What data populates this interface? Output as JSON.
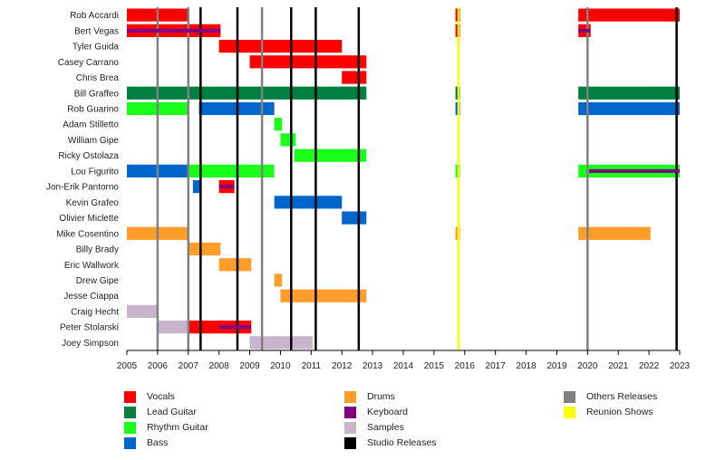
{
  "chart_data": {
    "type": "timeline",
    "xlim": [
      2005,
      2023
    ],
    "x_ticks": [
      "2005",
      "2006",
      "2007",
      "2008",
      "2009",
      "2010",
      "2011",
      "2012",
      "2013",
      "2014",
      "2015",
      "2016",
      "2017",
      "2018",
      "2019",
      "2020",
      "2021",
      "2022",
      "2023"
    ],
    "members": [
      "Rob Accardi",
      "Bert Vegas",
      "Tyler Guida",
      "Casey Carrano",
      "Chris Brea",
      "Bill Graffeo",
      "Rob Guarino",
      "Adam Stilletto",
      "William Gipe",
      "Ricky Ostolaza",
      "Lou Figurito",
      "Jon-Erik Pantorno",
      "Kevin Grafeo",
      "Olivier Miclette",
      "Mike Cosentino",
      "Billy Brady",
      "Eric Wallwork",
      "Drew Gipe",
      "Jesse Ciappa",
      "Craig Hecht",
      "Peter Stolarski",
      "Joey Simpson"
    ],
    "roles": [
      {
        "key": "vocals",
        "name": "Vocals",
        "color": "#ff0000"
      },
      {
        "key": "lead",
        "name": "Lead Guitar",
        "color": "#008040"
      },
      {
        "key": "rhythm",
        "name": "Rhythm Guitar",
        "color": "#1aff1a"
      },
      {
        "key": "bass",
        "name": "Bass",
        "color": "#0066cc"
      },
      {
        "key": "drums",
        "name": "Drums",
        "color": "#ff9d2a"
      },
      {
        "key": "keyboard",
        "name": "Keyboard",
        "color": "#800080"
      },
      {
        "key": "samples",
        "name": "Samples",
        "color": "#c8b4cc"
      },
      {
        "key": "studio",
        "name": "Studio Releases",
        "color": "#000000"
      },
      {
        "key": "others",
        "name": "Others Releases",
        "color": "#808080"
      },
      {
        "key": "reunion",
        "name": "Reunion Shows",
        "color": "#ffff00"
      }
    ],
    "bars": [
      {
        "member": "Rob Accardi",
        "role": "vocals",
        "start": 2005,
        "end": 2007.0
      },
      {
        "member": "Rob Accardi",
        "role": "vocals",
        "start": 2015.7,
        "end": 2015.85
      },
      {
        "member": "Rob Accardi",
        "role": "vocals",
        "start": 2019.7,
        "end": 2023
      },
      {
        "member": "Bert Vegas",
        "role": "vocals",
        "start": 2005,
        "end": 2008.05
      },
      {
        "member": "Bert Vegas",
        "role": "keyboard",
        "start": 2005,
        "end": 2008.05,
        "thin": true
      },
      {
        "member": "Bert Vegas",
        "role": "vocals",
        "start": 2015.7,
        "end": 2015.85
      },
      {
        "member": "Bert Vegas",
        "role": "vocals",
        "start": 2019.7,
        "end": 2020.1
      },
      {
        "member": "Bert Vegas",
        "role": "keyboard",
        "start": 2019.7,
        "end": 2020.1,
        "thin": true
      },
      {
        "member": "Tyler Guida",
        "role": "vocals",
        "start": 2008.0,
        "end": 2012.0
      },
      {
        "member": "Casey Carrano",
        "role": "vocals",
        "start": 2009.0,
        "end": 2012.8
      },
      {
        "member": "Chris Brea",
        "role": "vocals",
        "start": 2012.0,
        "end": 2012.8
      },
      {
        "member": "Bill Graffeo",
        "role": "lead",
        "start": 2005,
        "end": 2012.8
      },
      {
        "member": "Bill Graffeo",
        "role": "lead",
        "start": 2015.7,
        "end": 2015.85
      },
      {
        "member": "Bill Graffeo",
        "role": "lead",
        "start": 2019.7,
        "end": 2023
      },
      {
        "member": "Rob Guarino",
        "role": "rhythm",
        "start": 2005,
        "end": 2007.0
      },
      {
        "member": "Rob Guarino",
        "role": "bass",
        "start": 2007.35,
        "end": 2009.8
      },
      {
        "member": "Rob Guarino",
        "role": "bass",
        "start": 2015.7,
        "end": 2015.85
      },
      {
        "member": "Rob Guarino",
        "role": "bass",
        "start": 2019.7,
        "end": 2023
      },
      {
        "member": "Adam Stilletto",
        "role": "rhythm",
        "start": 2009.8,
        "end": 2010.05
      },
      {
        "member": "William Gipe",
        "role": "rhythm",
        "start": 2010.0,
        "end": 2010.5
      },
      {
        "member": "Ricky Ostolaza",
        "role": "rhythm",
        "start": 2010.45,
        "end": 2012.8
      },
      {
        "member": "Lou Figurito",
        "role": "bass",
        "start": 2005,
        "end": 2007.0
      },
      {
        "member": "Lou Figurito",
        "role": "rhythm",
        "start": 2007.0,
        "end": 2009.8
      },
      {
        "member": "Lou Figurito",
        "role": "rhythm",
        "start": 2015.7,
        "end": 2015.85
      },
      {
        "member": "Lou Figurito",
        "role": "rhythm",
        "start": 2019.7,
        "end": 2023
      },
      {
        "member": "Lou Figurito",
        "role": "keyboard",
        "start": 2020.05,
        "end": 2023,
        "thin": true
      },
      {
        "member": "Jon-Erik Pantorno",
        "role": "bass",
        "start": 2007.15,
        "end": 2007.4
      },
      {
        "member": "Jon-Erik Pantorno",
        "role": "vocals",
        "start": 2008.0,
        "end": 2008.5
      },
      {
        "member": "Jon-Erik Pantorno",
        "role": "keyboard",
        "start": 2008.0,
        "end": 2008.5,
        "thin": true
      },
      {
        "member": "Kevin Grafeo",
        "role": "bass",
        "start": 2009.8,
        "end": 2012.0
      },
      {
        "member": "Olivier Miclette",
        "role": "bass",
        "start": 2012.0,
        "end": 2012.8
      },
      {
        "member": "Mike Cosentino",
        "role": "drums",
        "start": 2005,
        "end": 2007.0
      },
      {
        "member": "Mike Cosentino",
        "role": "drums",
        "start": 2015.7,
        "end": 2015.85
      },
      {
        "member": "Mike Cosentino",
        "role": "drums",
        "start": 2019.7,
        "end": 2022.05
      },
      {
        "member": "Billy Brady",
        "role": "drums",
        "start": 2007.0,
        "end": 2008.05
      },
      {
        "member": "Eric Wallwork",
        "role": "drums",
        "start": 2008.0,
        "end": 2009.05
      },
      {
        "member": "Drew Gipe",
        "role": "drums",
        "start": 2009.8,
        "end": 2010.05
      },
      {
        "member": "Jesse Ciappa",
        "role": "drums",
        "start": 2010.0,
        "end": 2012.8
      },
      {
        "member": "Craig Hecht",
        "role": "samples",
        "start": 2005,
        "end": 2006.0
      },
      {
        "member": "Peter Stolarski",
        "role": "samples",
        "start": 2006.0,
        "end": 2007.0
      },
      {
        "member": "Peter Stolarski",
        "role": "vocals",
        "start": 2007.0,
        "end": 2009.05
      },
      {
        "member": "Peter Stolarski",
        "role": "keyboard",
        "start": 2008.0,
        "end": 2009.05,
        "thin": true
      },
      {
        "member": "Joey Simpson",
        "role": "samples",
        "start": 2009.0,
        "end": 2011.05
      }
    ],
    "release_lines": [
      {
        "role": "others",
        "x": 2006.0
      },
      {
        "role": "others",
        "x": 2007.0
      },
      {
        "role": "studio",
        "x": 2007.4
      },
      {
        "role": "studio",
        "x": 2008.6
      },
      {
        "role": "others",
        "x": 2009.4
      },
      {
        "role": "studio",
        "x": 2010.35
      },
      {
        "role": "studio",
        "x": 2011.15
      },
      {
        "role": "studio",
        "x": 2012.55
      },
      {
        "role": "reunion",
        "x": 2015.8
      },
      {
        "role": "others",
        "x": 2020.0
      },
      {
        "role": "studio",
        "x": 2022.9
      }
    ],
    "legend_position": "bottom"
  }
}
